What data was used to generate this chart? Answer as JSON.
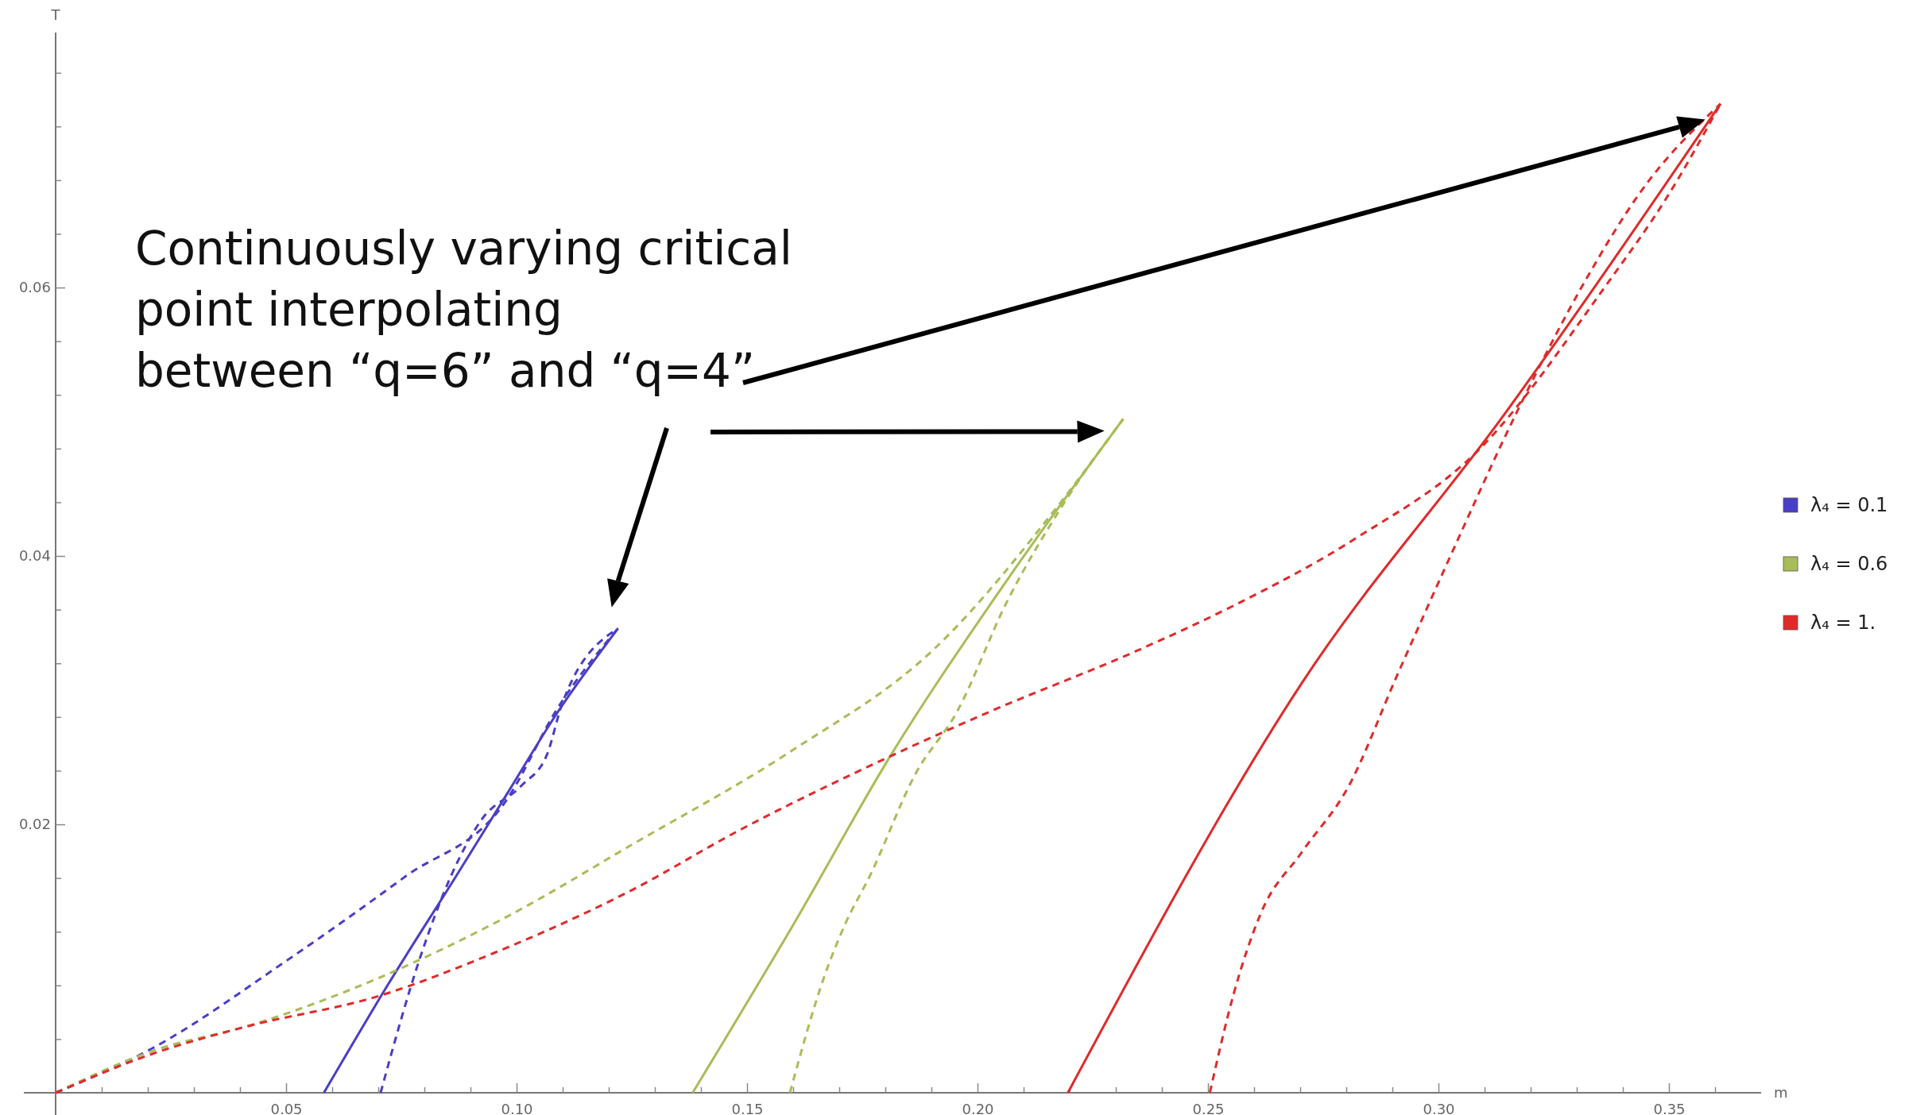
{
  "chart_data": {
    "type": "line",
    "xlabel": "m",
    "ylabel": "T",
    "annotations": [
      "Continuously varying critical\npoint interpolating\nbetween “q=6” and “q=4”"
    ],
    "xlim": [
      0,
      0.37
    ],
    "ylim": [
      0,
      0.079
    ],
    "xticks": [
      {
        "value": 0.01,
        "label": null
      },
      {
        "value": 0.02,
        "label": null
      },
      {
        "value": 0.03,
        "label": null
      },
      {
        "value": 0.04,
        "label": null
      },
      0.05,
      {
        "value": 0.06,
        "label": null
      },
      {
        "value": 0.07,
        "label": null
      },
      {
        "value": 0.08,
        "label": null
      },
      {
        "value": 0.09,
        "label": null
      },
      {
        "value": 0.1,
        "label": "0.10"
      },
      {
        "value": 0.11,
        "label": null
      },
      {
        "value": 0.12,
        "label": null
      },
      {
        "value": 0.13,
        "label": null
      },
      {
        "value": 0.14,
        "label": null
      },
      0.15,
      {
        "value": 0.16,
        "label": null
      },
      {
        "value": 0.17,
        "label": null
      },
      {
        "value": 0.18,
        "label": null
      },
      {
        "value": 0.19,
        "label": null
      },
      {
        "value": 0.2,
        "label": "0.20"
      },
      {
        "value": 0.21,
        "label": null
      },
      {
        "value": 0.22,
        "label": null
      },
      {
        "value": 0.23,
        "label": null
      },
      {
        "value": 0.24,
        "label": null
      },
      0.25,
      {
        "value": 0.26,
        "label": null
      },
      {
        "value": 0.27,
        "label": null
      },
      {
        "value": 0.28,
        "label": null
      },
      {
        "value": 0.29,
        "label": null
      },
      {
        "value": 0.3,
        "label": "0.30"
      },
      {
        "value": 0.31,
        "label": null
      },
      {
        "value": 0.32,
        "label": null
      },
      {
        "value": 0.33,
        "label": null
      },
      {
        "value": 0.34,
        "label": null
      },
      0.35,
      {
        "value": 0.36,
        "label": null
      }
    ],
    "yticks": [
      {
        "value": 0.004,
        "label": null
      },
      {
        "value": 0.008,
        "label": null
      },
      {
        "value": 0.012,
        "label": null
      },
      {
        "value": 0.016,
        "label": null
      },
      0.02,
      {
        "value": 0.024,
        "label": null
      },
      {
        "value": 0.028,
        "label": null
      },
      {
        "value": 0.032,
        "label": null
      },
      {
        "value": 0.036,
        "label": null
      },
      0.04,
      {
        "value": 0.044,
        "label": null
      },
      {
        "value": 0.048,
        "label": null
      },
      {
        "value": 0.052,
        "label": null
      },
      {
        "value": 0.056,
        "label": null
      },
      0.06,
      {
        "value": 0.064,
        "label": null
      },
      {
        "value": 0.068,
        "label": null
      },
      {
        "value": 0.072,
        "label": null
      },
      {
        "value": 0.076,
        "label": null
      }
    ],
    "grid": false,
    "legend": "right",
    "marker": "none",
    "series": [
      {
        "name": "λ₄ = 0.1",
        "color": "#4a3ec6",
        "line_style": "solid",
        "x": [
          0.0582,
          0.072,
          0.0868,
          0.0978,
          0.1088,
          0.122
        ],
        "values": [
          0,
          0.008,
          0.0161,
          0.0222,
          0.0283,
          0.0346
        ]
      },
      {
        "color": "#4a3ec6",
        "line_style": "dashed",
        "x": [
          0,
          0.0209,
          0.0495,
          0.0758,
          0.0978,
          0.1088,
          0.122
        ],
        "values": [
          0,
          0.0033,
          0.0097,
          0.0161,
          0.0218,
          0.0286,
          0.0346
        ]
      },
      {
        "color": "#4a3ec6",
        "line_style": "dashed",
        "x": [
          0.0705,
          0.0791,
          0.0857,
          0.0923,
          0.1011,
          0.1066,
          0.1099,
          0.122
        ],
        "values": [
          0,
          0.0101,
          0.0161,
          0.0203,
          0.0229,
          0.0252,
          0.029,
          0.0346
        ]
      },
      {
        "name": "λ₄ = 0.6",
        "color": "#a8bd58",
        "line_style": "solid",
        "x": [
          0.1382,
          0.16,
          0.1811,
          0.205,
          0.2316
        ],
        "values": [
          0,
          0.0125,
          0.0251,
          0.0375,
          0.0502
        ]
      },
      {
        "color": "#a8bd58",
        "line_style": "dashed",
        "x": [
          0,
          0.0209,
          0.0429,
          0.0978,
          0.1251,
          0.1593,
          0.191,
          0.2185,
          0.2316
        ],
        "values": [
          0,
          0.0031,
          0.0051,
          0.0131,
          0.0185,
          0.0254,
          0.0332,
          0.0442,
          0.0502
        ]
      },
      {
        "color": "#a8bd58",
        "line_style": "dashed",
        "x": [
          0.1593,
          0.1668,
          0.1712,
          0.1767,
          0.1866,
          0.1954,
          0.2064,
          0.2185,
          0.2316
        ],
        "values": [
          0,
          0.0087,
          0.0125,
          0.0162,
          0.0238,
          0.0283,
          0.0366,
          0.0438,
          0.0502
        ]
      },
      {
        "name": "λ₄ = 1.",
        "color": "#e02a2a",
        "line_style": "solid",
        "x": [
          0.2196,
          0.2703,
          0.3144,
          0.3612
        ],
        "values": [
          0,
          0.0305,
          0.0506,
          0.0737
        ]
      },
      {
        "color": "#e02a2a",
        "line_style": "dashed",
        "x": [
          0,
          0.021,
          0.041,
          0.07,
          0.095,
          0.125,
          0.148,
          0.18,
          0.202,
          0.235,
          0.255,
          0.282,
          0.309,
          0.336,
          0.3497,
          0.3612
        ],
        "values": [
          0,
          0.0029,
          0.0049,
          0.0072,
          0.0104,
          0.0151,
          0.0195,
          0.0249,
          0.0283,
          0.033,
          0.0362,
          0.0413,
          0.048,
          0.06,
          0.0668,
          0.0737
        ]
      },
      {
        "color": "#e02a2a",
        "line_style": "dashed",
        "x": [
          0.2504,
          0.2556,
          0.2615,
          0.2703,
          0.2806,
          0.2909,
          0.3026,
          0.3174,
          0.332,
          0.3438,
          0.3612
        ],
        "values": [
          0,
          0.0074,
          0.0134,
          0.0179,
          0.0229,
          0.031,
          0.04,
          0.051,
          0.0606,
          0.0671,
          0.0737
        ]
      }
    ]
  }
}
